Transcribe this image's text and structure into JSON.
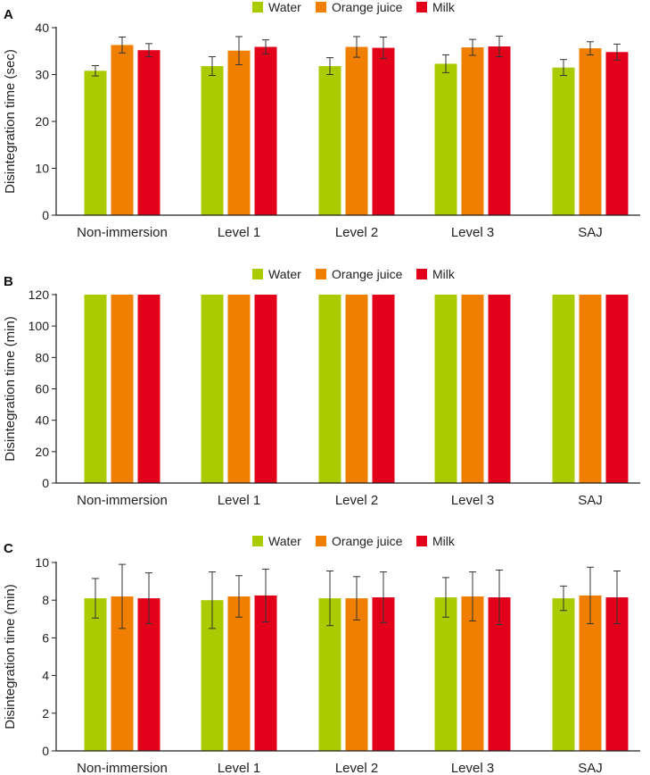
{
  "colors": {
    "Water": "#aacb00",
    "Orange juice": "#f07f00",
    "Milk": "#e2001a",
    "axis": "#222222",
    "errorbar": "#333333"
  },
  "chart_data": [
    {
      "panel": "A",
      "type": "bar",
      "ylabel": "Disintegration time (sec)",
      "ylim": [
        0,
        40
      ],
      "yticks": [
        0,
        10,
        20,
        30,
        40
      ],
      "categories": [
        "Non-immersion",
        "Level 1",
        "Level 2",
        "Level 3",
        "SAJ"
      ],
      "series": [
        {
          "name": "Water",
          "values": [
            30.8,
            31.8,
            31.8,
            32.3,
            31.5
          ],
          "errors": [
            1.1,
            2.0,
            1.8,
            1.9,
            1.7
          ]
        },
        {
          "name": "Orange juice",
          "values": [
            36.3,
            35.1,
            35.9,
            35.8,
            35.6
          ],
          "errors": [
            1.7,
            3.0,
            2.2,
            1.7,
            1.4
          ]
        },
        {
          "name": "Milk",
          "values": [
            35.2,
            35.9,
            35.7,
            36.0,
            34.8
          ],
          "errors": [
            1.4,
            1.5,
            2.3,
            2.2,
            1.7
          ]
        }
      ],
      "legend": "top-center"
    },
    {
      "panel": "B",
      "type": "bar",
      "ylabel": "Disintegration time (min)",
      "ylim": [
        0,
        120
      ],
      "yticks": [
        0,
        20,
        40,
        60,
        80,
        100,
        120
      ],
      "categories": [
        "Non-immersion",
        "Level 1",
        "Level 2",
        "Level 3",
        "SAJ"
      ],
      "series": [
        {
          "name": "Water",
          "values": [
            120,
            120,
            120,
            120,
            120
          ],
          "errors": [
            0,
            0,
            0,
            0,
            0
          ]
        },
        {
          "name": "Orange juice",
          "values": [
            120,
            120,
            120,
            120,
            120
          ],
          "errors": [
            0,
            0,
            0,
            0,
            0
          ]
        },
        {
          "name": "Milk",
          "values": [
            120,
            120,
            120,
            120,
            120
          ],
          "errors": [
            0,
            0,
            0,
            0,
            0
          ]
        }
      ],
      "legend": "top-center"
    },
    {
      "panel": "C",
      "type": "bar",
      "ylabel": "Disintegration time (min)",
      "ylim": [
        0,
        10
      ],
      "yticks": [
        0,
        2,
        4,
        6,
        8,
        10
      ],
      "categories": [
        "Non-immersion",
        "Level 1",
        "Level 2",
        "Level 3",
        "SAJ"
      ],
      "series": [
        {
          "name": "Water",
          "values": [
            8.1,
            8.0,
            8.1,
            8.15,
            8.1
          ],
          "errors": [
            1.05,
            1.5,
            1.45,
            1.05,
            0.65
          ]
        },
        {
          "name": "Orange juice",
          "values": [
            8.2,
            8.2,
            8.1,
            8.2,
            8.25
          ],
          "errors": [
            1.7,
            1.1,
            1.15,
            1.3,
            1.5
          ]
        },
        {
          "name": "Milk",
          "values": [
            8.1,
            8.25,
            8.15,
            8.15,
            8.15
          ],
          "errors": [
            1.35,
            1.4,
            1.35,
            1.45,
            1.4
          ]
        }
      ],
      "legend": "top-center"
    }
  ]
}
